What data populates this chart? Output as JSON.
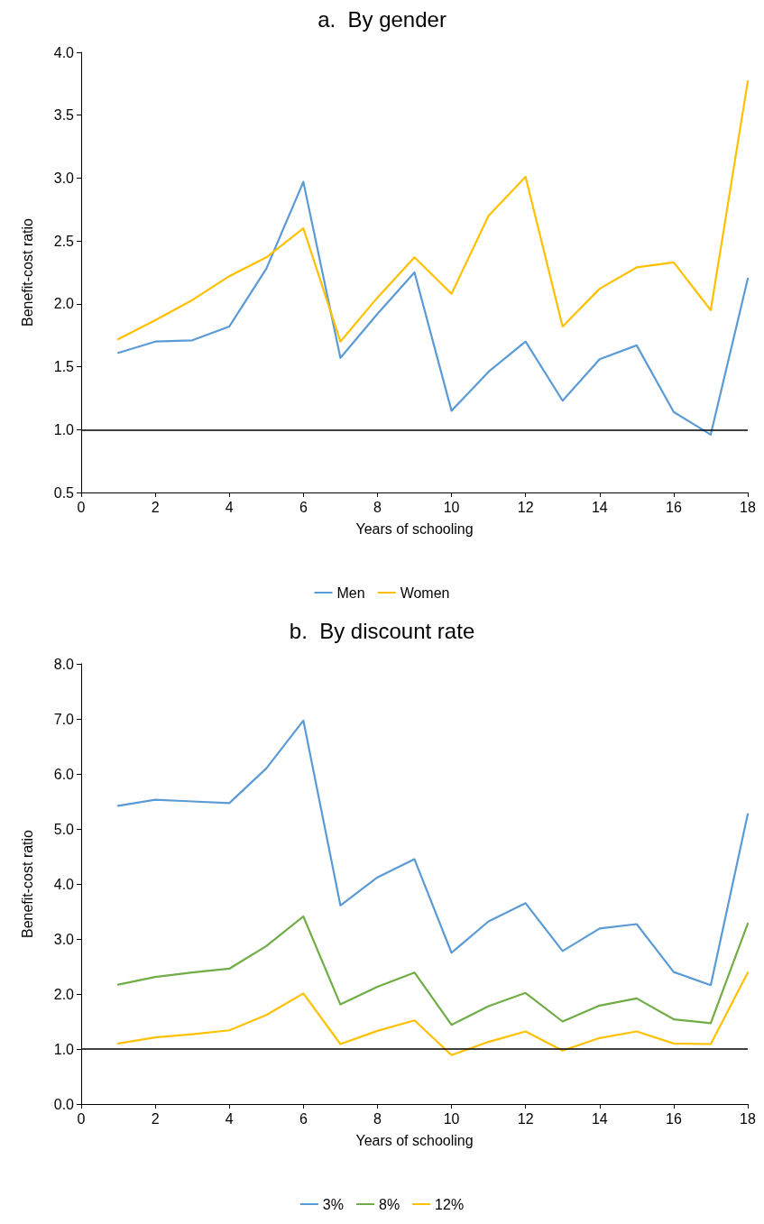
{
  "chart_data": [
    {
      "type": "line",
      "title": "a.  By gender",
      "xlabel": "Years of schooling",
      "ylabel": "Benefit-cost ratio",
      "x": [
        1,
        2,
        3,
        4,
        5,
        6,
        7,
        8,
        9,
        10,
        11,
        12,
        13,
        14,
        15,
        16,
        17,
        18
      ],
      "series": [
        {
          "name": "Men",
          "color": "#5b9bd5",
          "values": [
            1.61,
            1.7,
            1.71,
            1.82,
            2.28,
            2.97,
            1.57,
            1.92,
            2.25,
            1.15,
            1.46,
            1.7,
            1.23,
            1.56,
            1.67,
            1.14,
            0.96,
            2.2
          ]
        },
        {
          "name": "Women",
          "color": "#ffc000",
          "values": [
            1.72,
            1.87,
            2.03,
            2.22,
            2.37,
            2.6,
            1.7,
            2.05,
            2.37,
            2.08,
            2.7,
            3.01,
            1.82,
            2.12,
            2.29,
            2.33,
            1.95,
            3.77
          ]
        }
      ],
      "xlim": [
        0,
        18
      ],
      "xticks": [
        0,
        2,
        4,
        6,
        8,
        10,
        12,
        14,
        16,
        18
      ],
      "ylim": [
        0.5,
        4
      ],
      "yticks": [
        {
          "value": 0.5,
          "label": "0.5"
        },
        {
          "value": 1,
          "label": "1.0"
        },
        {
          "value": 1.5,
          "label": "1.5"
        },
        {
          "value": 2,
          "label": "2.0"
        },
        {
          "value": 2.5,
          "label": "2.5"
        },
        {
          "value": 3,
          "label": "3.0"
        },
        {
          "value": 3.5,
          "label": "3.5"
        },
        {
          "value": 4,
          "label": "4.0"
        }
      ],
      "ref_lines": [
        {
          "axis": "y",
          "value": 1,
          "color": "#000000"
        }
      ],
      "grid": false,
      "legend": "bottom",
      "marker": "none",
      "line_style": "solid"
    },
    {
      "type": "line",
      "title": "b.  By discount rate",
      "xlabel": "Years of schooling",
      "ylabel": "Benefit-cost ratio",
      "x": [
        1,
        2,
        3,
        4,
        5,
        6,
        7,
        8,
        9,
        10,
        11,
        12,
        13,
        14,
        15,
        16,
        17,
        18
      ],
      "series": [
        {
          "name": "3%",
          "color": "#5b9bd5",
          "values": [
            5.42,
            5.53,
            5.5,
            5.47,
            6.1,
            6.97,
            3.61,
            4.12,
            4.45,
            2.75,
            3.32,
            3.65,
            2.78,
            3.19,
            3.27,
            2.4,
            2.16,
            5.27
          ]
        },
        {
          "name": "8%",
          "color": "#70ad47",
          "values": [
            2.17,
            2.31,
            2.39,
            2.46,
            2.87,
            3.41,
            1.81,
            2.13,
            2.39,
            1.44,
            1.78,
            2.02,
            1.5,
            1.79,
            1.92,
            1.54,
            1.47,
            3.28
          ]
        },
        {
          "name": "12%",
          "color": "#ffc000",
          "values": [
            1.1,
            1.21,
            1.27,
            1.34,
            1.62,
            2.01,
            1.09,
            1.33,
            1.52,
            0.89,
            1.13,
            1.32,
            0.97,
            1.2,
            1.32,
            1.1,
            1.09,
            2.39
          ]
        }
      ],
      "xlim": [
        0,
        18
      ],
      "xticks": [
        0,
        2,
        4,
        6,
        8,
        10,
        12,
        14,
        16,
        18
      ],
      "ylim": [
        0,
        8
      ],
      "yticks": [
        {
          "value": 0,
          "label": "0.0"
        },
        {
          "value": 1,
          "label": "1.0"
        },
        {
          "value": 2,
          "label": "2.0"
        },
        {
          "value": 3,
          "label": "3.0"
        },
        {
          "value": 4,
          "label": "4.0"
        },
        {
          "value": 5,
          "label": "5.0"
        },
        {
          "value": 6,
          "label": "6.0"
        },
        {
          "value": 7,
          "label": "7.0"
        },
        {
          "value": 8,
          "label": "8.0"
        }
      ],
      "ref_lines": [
        {
          "axis": "y",
          "value": 1,
          "color": "#000000"
        }
      ],
      "grid": false,
      "legend": "bottom",
      "marker": "none",
      "line_style": "solid"
    }
  ]
}
